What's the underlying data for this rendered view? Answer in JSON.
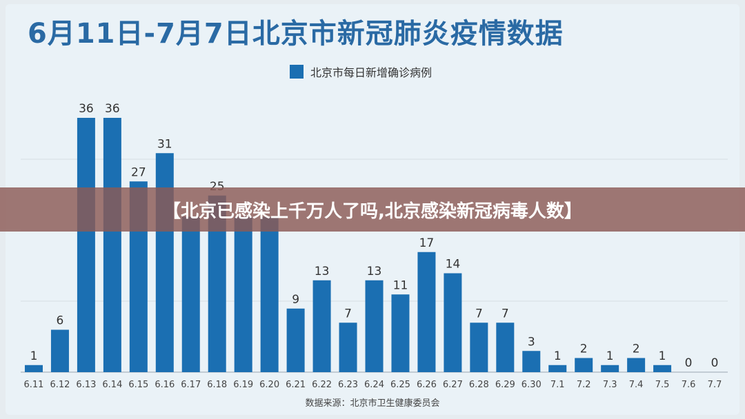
{
  "title": "6月11日-7月7日北京市新冠肺炎疫情数据",
  "legend": {
    "label": "北京市每日新增确诊病例",
    "color": "#1b6fb2"
  },
  "banner": {
    "text": "【北京已感染上千万人了吗,北京感染新冠病毒人数】"
  },
  "source": "数据来源：北京市卫生健康委员会",
  "chart_data": {
    "type": "bar",
    "title": "6月11日-7月7日北京市新冠肺炎疫情数据",
    "xlabel": "",
    "ylabel": "",
    "ylim": [
      0,
      40
    ],
    "grid": true,
    "legend_position": "top-center",
    "categories": [
      "6.11",
      "6.12",
      "6.13",
      "6.14",
      "6.15",
      "6.16",
      "6.17",
      "6.18",
      "6.19",
      "6.20",
      "6.21",
      "6.22",
      "6.23",
      "6.24",
      "6.25",
      "6.26",
      "6.27",
      "6.28",
      "6.29",
      "6.30",
      "7.1",
      "7.2",
      "7.3",
      "7.4",
      "7.5",
      "7.6",
      "7.7"
    ],
    "series": [
      {
        "name": "北京市每日新增确诊病例",
        "values": [
          1,
          6,
          36,
          36,
          27,
          31,
          22,
          25,
          22,
          22,
          9,
          13,
          7,
          13,
          11,
          17,
          14,
          7,
          7,
          3,
          1,
          2,
          1,
          2,
          1,
          0,
          0
        ]
      }
    ],
    "data_labels_shown": [
      "1",
      "6",
      "36",
      "36",
      "27",
      "31",
      "",
      "25",
      "",
      "",
      "9",
      "13",
      "7",
      "13",
      "11",
      "17",
      "14",
      "7",
      "7",
      "3",
      "1",
      "2",
      "1",
      "2",
      "1",
      "0",
      "0"
    ]
  }
}
